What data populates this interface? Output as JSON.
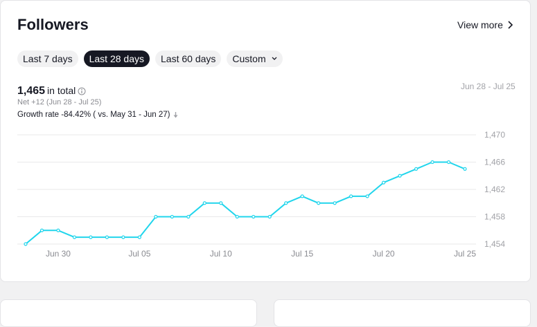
{
  "header": {
    "title": "Followers",
    "view_more": "View more"
  },
  "tabs": [
    {
      "label": "Last 7 days",
      "active": false
    },
    {
      "label": "Last 28 days",
      "active": true
    },
    {
      "label": "Last 60 days",
      "active": false
    },
    {
      "label": "Custom",
      "active": false
    }
  ],
  "summary": {
    "total": "1,465",
    "total_label": "in total",
    "net": "Net +12 (Jun 28 - Jul 25)",
    "growth": "Growth rate -84.42% ( vs. May 31 - Jun 27)",
    "range": "Jun 28 - Jul 25"
  },
  "colors": {
    "line": "#20d5ec",
    "grid": "#e8e8ea",
    "axis_text": "#a1a2a7",
    "active_tab": "#161823"
  },
  "chart_data": {
    "type": "line",
    "x": [
      "Jun 28",
      "Jun 29",
      "Jun 30",
      "Jul 01",
      "Jul 02",
      "Jul 03",
      "Jul 04",
      "Jul 05",
      "Jul 06",
      "Jul 07",
      "Jul 08",
      "Jul 09",
      "Jul 10",
      "Jul 11",
      "Jul 12",
      "Jul 13",
      "Jul 14",
      "Jul 15",
      "Jul 16",
      "Jul 17",
      "Jul 18",
      "Jul 19",
      "Jul 20",
      "Jul 21",
      "Jul 22",
      "Jul 23",
      "Jul 24",
      "Jul 25"
    ],
    "series": [
      {
        "values": [
          1454,
          1456,
          1456,
          1455,
          1455,
          1455,
          1455,
          1455,
          1458,
          1458,
          1458,
          1460,
          1460,
          1458,
          1458,
          1458,
          1460,
          1461,
          1460,
          1460,
          1461,
          1461,
          1463,
          1464,
          1465,
          1466,
          1466,
          1465
        ]
      }
    ],
    "x_tick_labels": [
      "Jun 30",
      "Jul 05",
      "Jul 10",
      "Jul 15",
      "Jul 20",
      "Jul 25"
    ],
    "x_tick_indices": [
      2,
      7,
      12,
      17,
      22,
      27
    ],
    "y_tick_labels": [
      "1,470",
      "1,466",
      "1,462",
      "1,458",
      "1,454"
    ],
    "y_ticks": [
      1470,
      1466,
      1462,
      1458,
      1454
    ],
    "ylim": [
      1454,
      1470
    ],
    "grid": true,
    "legend": "none"
  }
}
